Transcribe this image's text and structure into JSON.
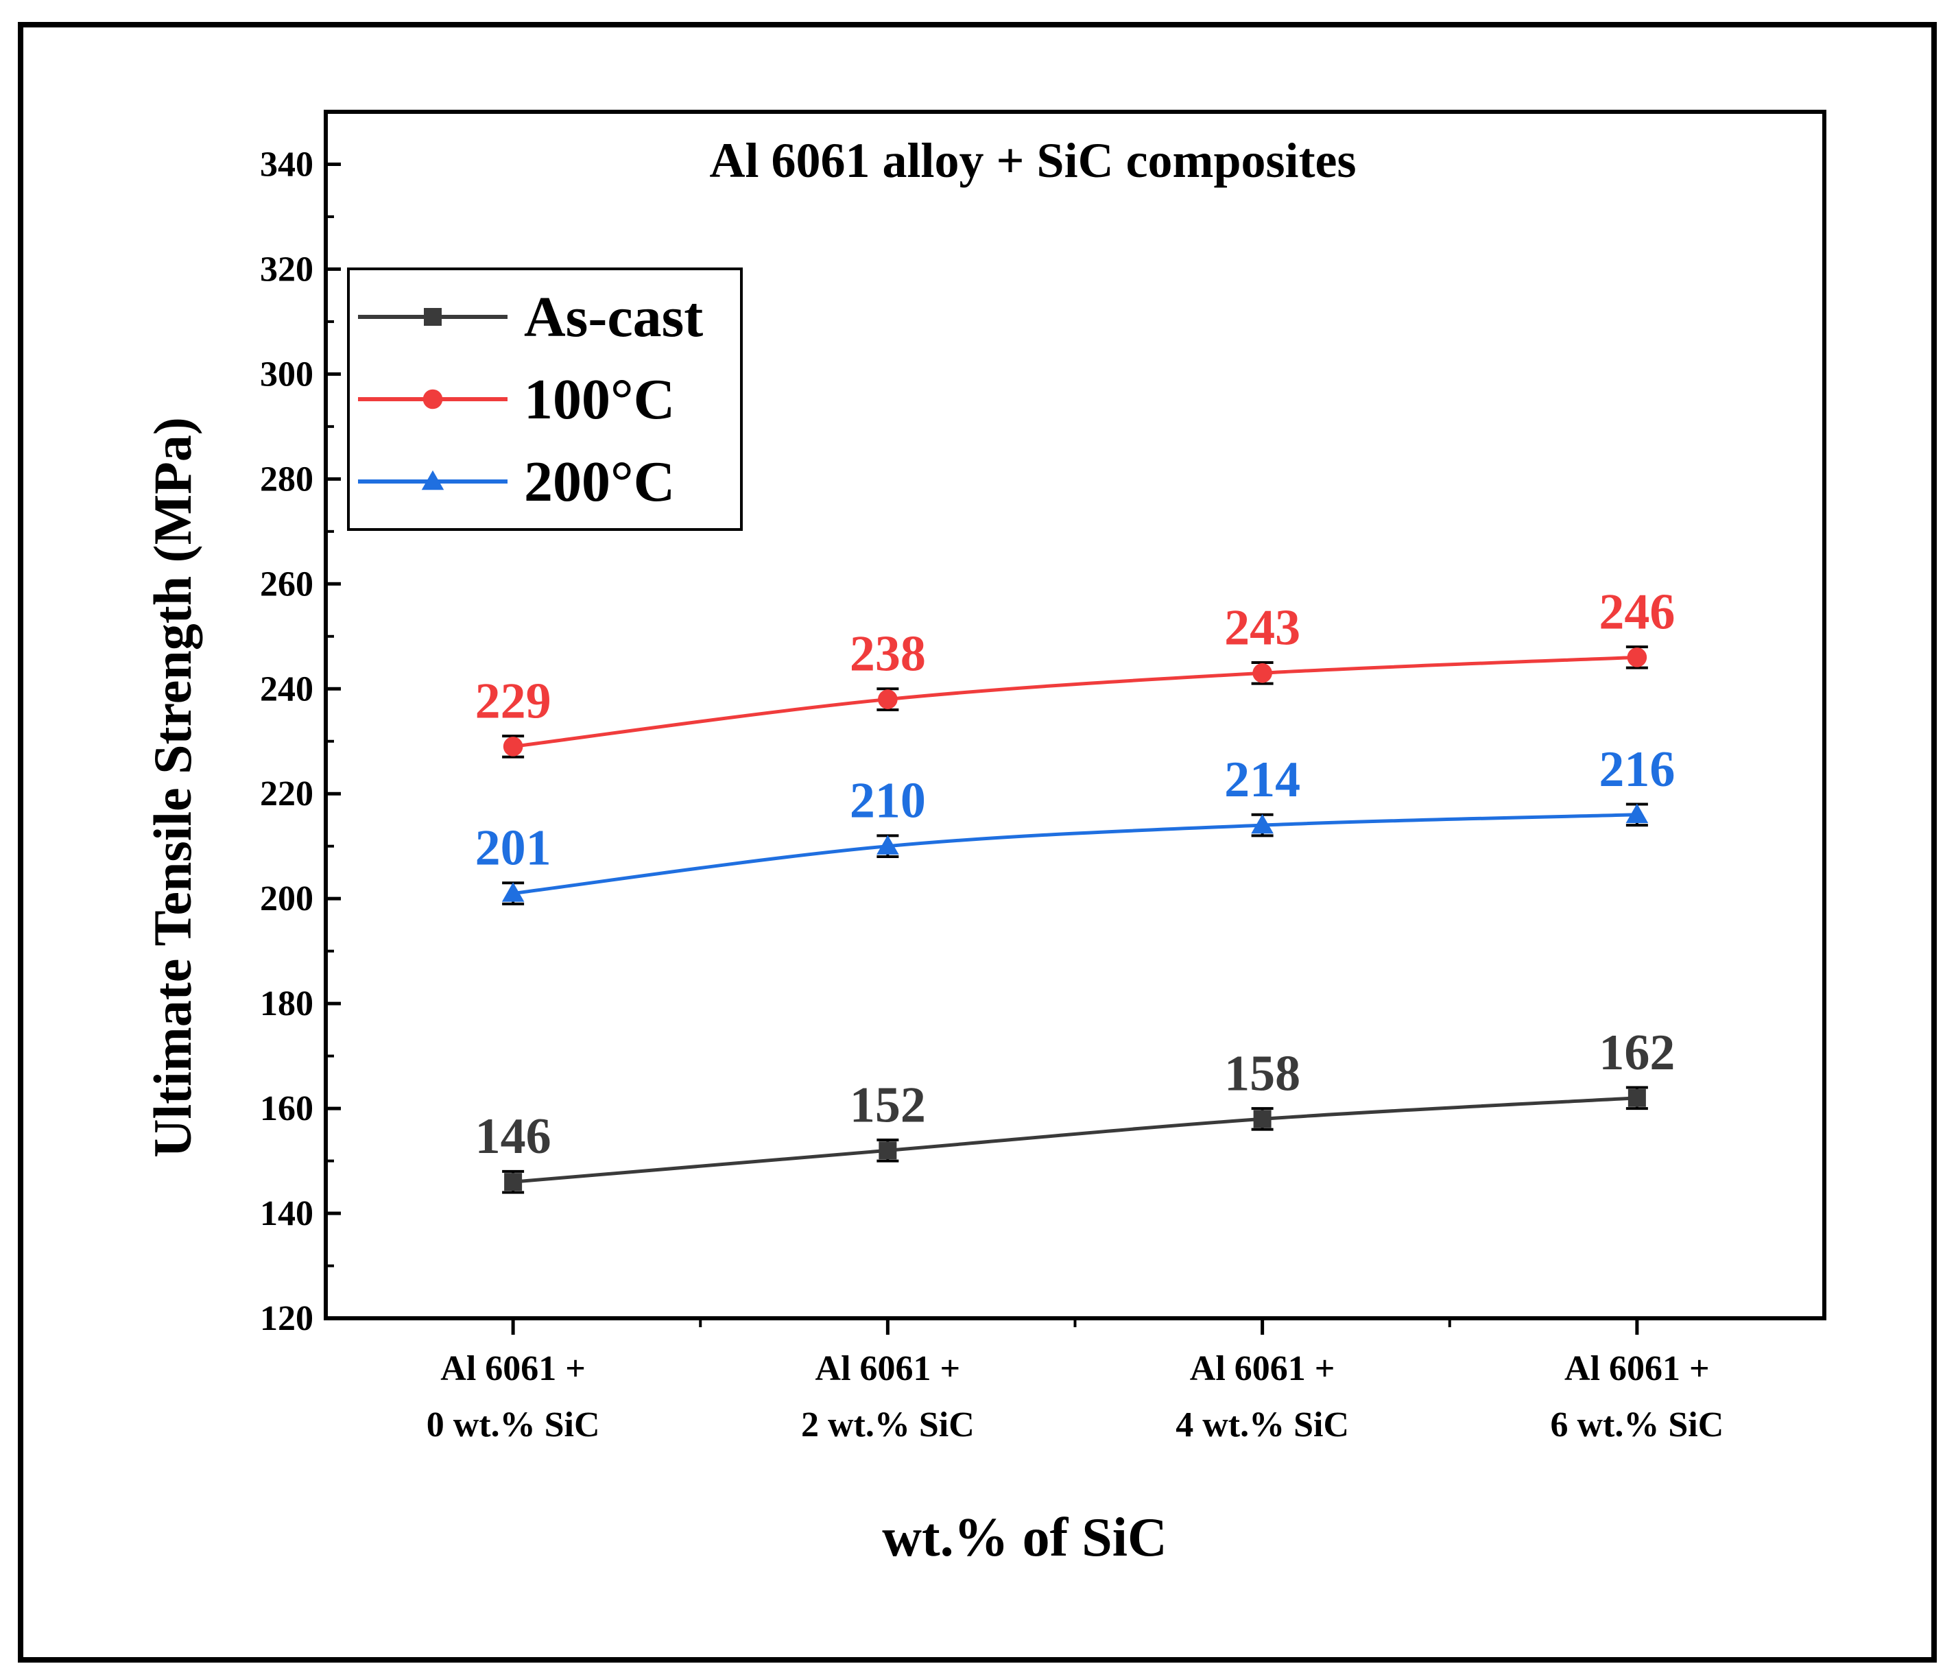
{
  "chart_data": {
    "type": "line",
    "title": "Al 6061 alloy + SiC composites",
    "xlabel": "wt.% of SiC",
    "ylabel": "Ultimate Tensile Strength (MPa)",
    "ylim": [
      120,
      350
    ],
    "yticks": [
      120,
      140,
      160,
      180,
      200,
      220,
      240,
      260,
      280,
      300,
      320,
      340
    ],
    "categories": [
      [
        "Al 6061 +",
        "0 wt.% SiC"
      ],
      [
        "Al 6061 +",
        "2 wt.% SiC"
      ],
      [
        "Al 6061 +",
        "4 wt.% SiC"
      ],
      [
        "Al 6061 +",
        "6 wt.% SiC"
      ]
    ],
    "legend_position": "top-left",
    "grid": false,
    "series": [
      {
        "name": "As-cast",
        "color": "#3a3a3a",
        "marker": "square",
        "values": [
          146,
          152,
          158,
          162
        ],
        "error": [
          2,
          2,
          2,
          2
        ]
      },
      {
        "name": "100°C",
        "color": "#f03c3c",
        "marker": "circle",
        "values": [
          229,
          238,
          243,
          246
        ],
        "error": [
          2,
          2,
          2,
          2
        ]
      },
      {
        "name": "200°C",
        "color": "#1f6fe0",
        "marker": "triangle",
        "values": [
          201,
          210,
          214,
          216
        ],
        "error": [
          2,
          2,
          2,
          2
        ]
      }
    ]
  }
}
